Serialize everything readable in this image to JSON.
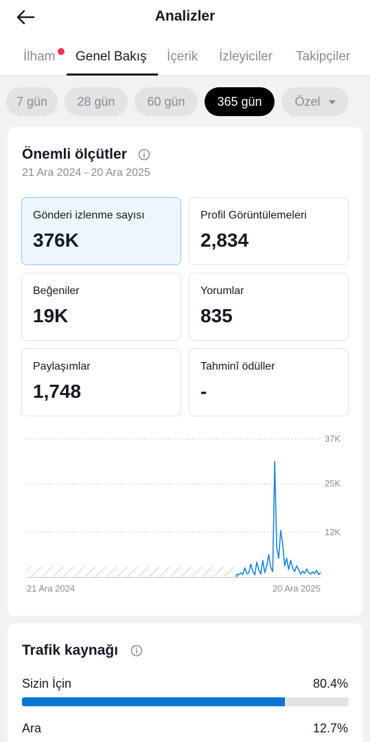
{
  "header": {
    "title": "Analizler",
    "back_icon": "arrow-left-icon"
  },
  "tabs": [
    {
      "label": "İlham",
      "has_dot": true
    },
    {
      "label": "Genel Bakış",
      "active": true
    },
    {
      "label": "İçerik"
    },
    {
      "label": "İzleyiciler"
    },
    {
      "label": "Takipçiler"
    }
  ],
  "ranges": [
    {
      "label": "7 gün"
    },
    {
      "label": "28 gün"
    },
    {
      "label": "60 gün"
    },
    {
      "label": "365 gün",
      "active": true
    },
    {
      "label": "Özel",
      "dropdown": true
    }
  ],
  "key_metrics": {
    "title": "Önemli ölçütler",
    "date_range": "21 Ara 2024 - 20 Ara 2025",
    "items": [
      {
        "label": "Gönderi izlenme sayısı",
        "value": "376K",
        "selected": true
      },
      {
        "label": "Profil Görüntülemeleri",
        "value": "2,834"
      },
      {
        "label": "Beğeniler",
        "value": "19K"
      },
      {
        "label": "Yorumlar",
        "value": "835"
      },
      {
        "label": "Paylaşımlar",
        "value": "1,748"
      },
      {
        "label": "Tahminî ödüller",
        "value": "-"
      }
    ]
  },
  "chart_data": {
    "type": "line",
    "series": [
      {
        "values": [
          800,
          600,
          1200,
          700,
          2500,
          900,
          1100,
          3500,
          1500,
          600,
          4000,
          2000,
          800,
          4500,
          1200,
          3000,
          6000,
          2500,
          1500,
          31000,
          8000,
          5000,
          12500,
          9000,
          3000,
          5000,
          2000,
          4500,
          2500,
          1500,
          3000,
          2000,
          800,
          1600,
          1000,
          2200,
          1200,
          800,
          1400,
          900,
          1800,
          700,
          1200
        ]
      }
    ],
    "x_tick_labels": [
      "21 Ara 2024",
      "20 Ara 2025"
    ],
    "y_tick_labels": [
      "37K",
      "25K",
      "12K"
    ],
    "y_ticks": [
      37000,
      25000,
      12000
    ],
    "ylim": [
      0,
      37000
    ],
    "series_start_fraction": 0.715,
    "no_data_before_series": true,
    "line_color": "#1a83d8",
    "grid": "dotted"
  },
  "traffic": {
    "title": "Trafik kaynağı",
    "rows": [
      {
        "label": "Sizin İçin",
        "value": "80.4%",
        "percent": 80.4
      },
      {
        "label": "Ara",
        "value": "12.7%",
        "percent": 12.7
      }
    ]
  },
  "colors": {
    "accent": "#0b75d6",
    "notification_dot": "#fe2c55",
    "active_chip": "#000000",
    "selected_card_bg": "#eef6fd"
  }
}
